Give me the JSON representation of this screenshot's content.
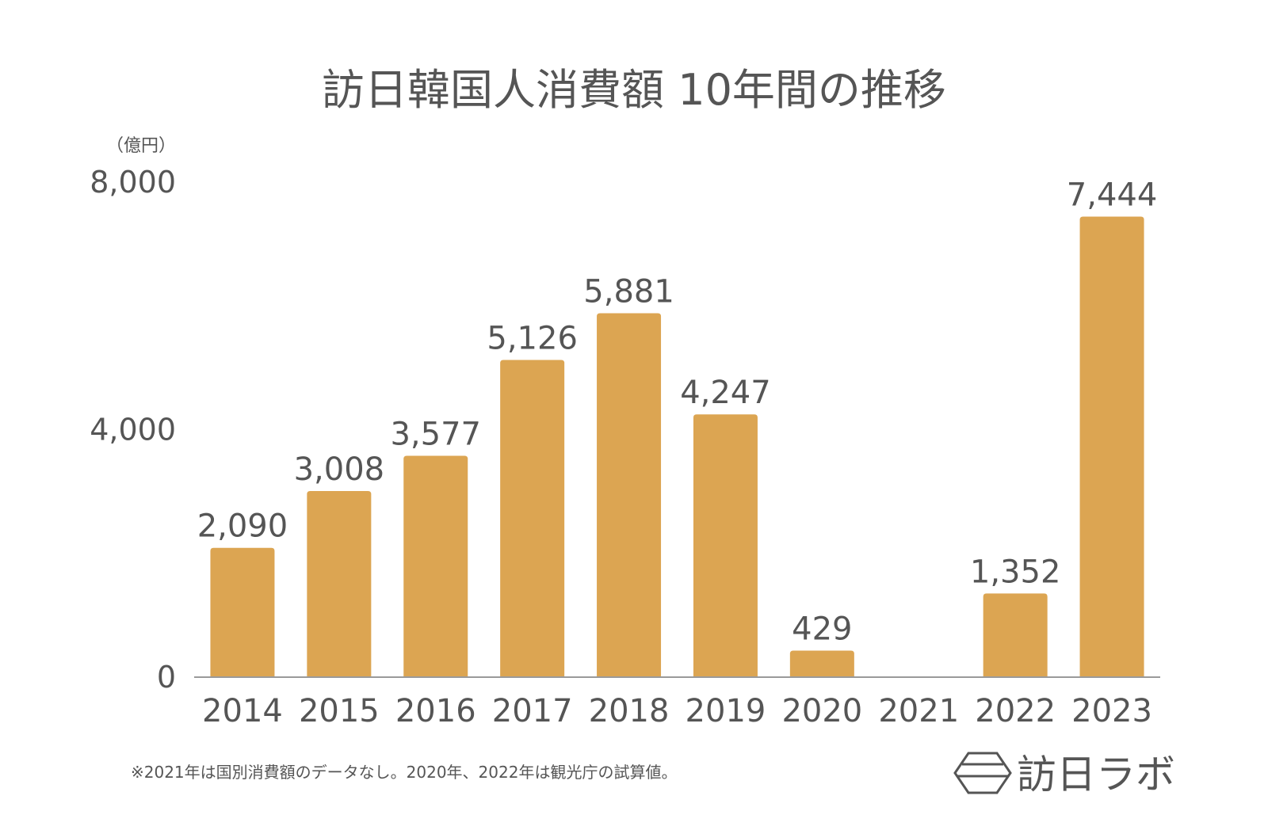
{
  "chart_data": {
    "type": "bar",
    "title": "訪日韓国人消費額 10年間の推移",
    "unit_label": "（億円）",
    "categories": [
      "2014",
      "2015",
      "2016",
      "2017",
      "2018",
      "2019",
      "2020",
      "2021",
      "2022",
      "2023"
    ],
    "values": [
      2090,
      3008,
      3577,
      5126,
      5881,
      4247,
      429,
      null,
      1352,
      7444
    ],
    "value_labels": [
      "2,090",
      "3,008",
      "3,577",
      "5,126",
      "5,881",
      "4,247",
      "429",
      "",
      "1,352",
      "7,444"
    ],
    "ylim": [
      0,
      8000
    ],
    "y_ticks": [
      0,
      4000,
      8000
    ],
    "y_tick_labels": [
      "0",
      "4,000",
      "8,000"
    ],
    "grid": false,
    "bar_color": "#dca552",
    "text_color": "#555555"
  },
  "footnote": "※2021年は国別消費額のデータなし。2020年、2022年は観光庁の試算値。",
  "logo": {
    "text": "訪日ラボ",
    "icon": "hexagon-logo-icon"
  }
}
